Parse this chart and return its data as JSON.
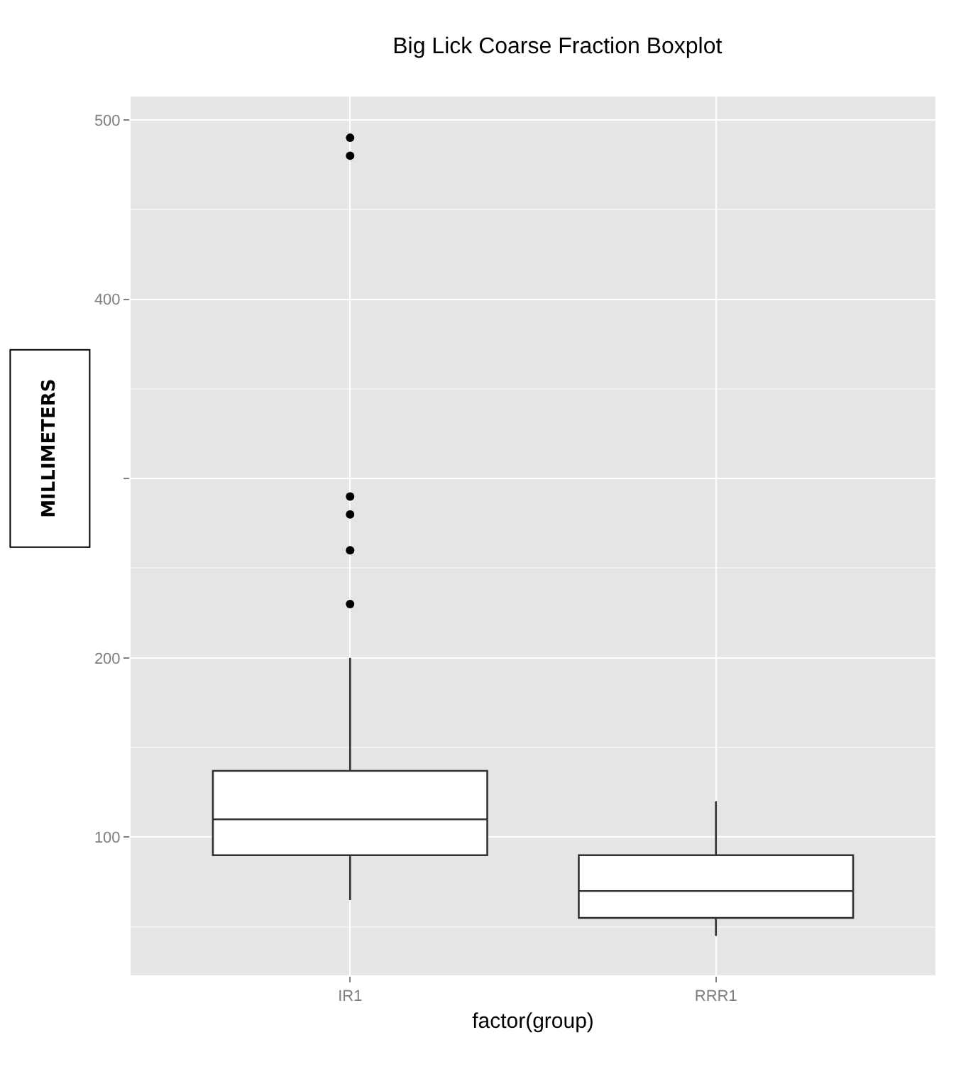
{
  "chart_data": {
    "type": "box",
    "title": "Big Lick Coarse Fraction Boxplot",
    "xlabel": "factor(group)",
    "ylabel": "MILLIMETERS",
    "categories": [
      "IR1",
      "RRR1"
    ],
    "boxes": [
      {
        "low": 65,
        "q1": 90,
        "median": 110,
        "q3": 137,
        "high": 200,
        "outliers": [
          490,
          480,
          290,
          280,
          260,
          230
        ]
      },
      {
        "low": 45,
        "q1": 55,
        "median": 70,
        "q3": 90,
        "high": 120
      }
    ],
    "ylim": [
      23,
      513
    ],
    "yticks": [
      100,
      200,
      {
        "value": 300,
        "label": null
      },
      400,
      500
    ],
    "grid": true
  }
}
